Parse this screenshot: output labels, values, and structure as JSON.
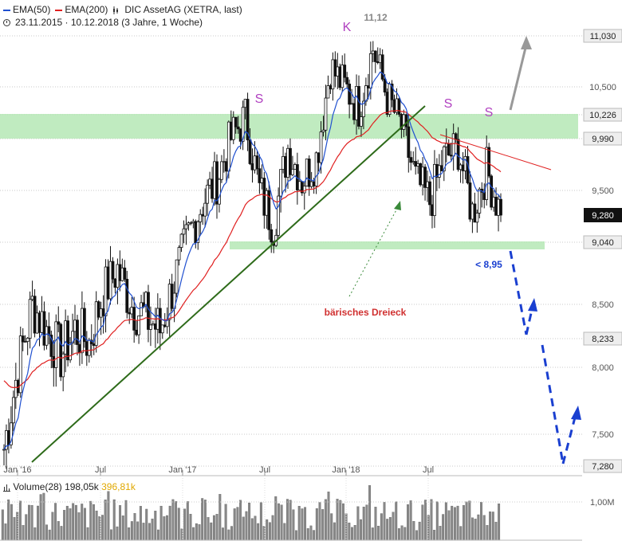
{
  "header": {
    "legend": [
      {
        "label": "EMA(50)",
        "color": "#2050d0"
      },
      {
        "label": "EMA(200)",
        "color": "#e02020"
      }
    ],
    "instrument": "DIC AssetAG (XETRA, last)",
    "period": "23.11.2015 · 10.12.2018  (3 Jahre, 1 Woche)"
  },
  "volume_header": {
    "label": "Volume(28)",
    "value1": "198,05k",
    "value2": "396,81k",
    "value2_color": "#e0a800"
  },
  "chart_data": {
    "type": "line",
    "x_tick_labels": [
      "Jan '16",
      "Jul",
      "Jan '17",
      "Jul",
      "Jan '18",
      "Jul"
    ],
    "y_tick_labels": [
      "11,030",
      "10,500",
      "10,226",
      "9,990",
      "9,500",
      "9,280",
      "9,040",
      "8,500",
      "8,233",
      "8,000",
      "7,500",
      "7,280"
    ],
    "ylim": [
      7.2,
      11.3
    ],
    "current_price": 9.28,
    "peak_label": "11,12",
    "annotations": {
      "pattern_labels": [
        "S",
        "K",
        "S",
        "S"
      ],
      "target_label": "< 8,95",
      "pattern_name": "bärisches Dreieck"
    },
    "price_series_approx": [
      {
        "date": "2016-01",
        "close": 7.4
      },
      {
        "date": "2016-02",
        "close": 8.0
      },
      {
        "date": "2016-03",
        "close": 8.5
      },
      {
        "date": "2016-04",
        "close": 8.3
      },
      {
        "date": "2016-05",
        "close": 8.1
      },
      {
        "date": "2016-06",
        "close": 8.3
      },
      {
        "date": "2016-07",
        "close": 8.2
      },
      {
        "date": "2016-08",
        "close": 8.6
      },
      {
        "date": "2016-09",
        "close": 8.8
      },
      {
        "date": "2016-10",
        "close": 8.5
      },
      {
        "date": "2016-11",
        "close": 8.4
      },
      {
        "date": "2016-12",
        "close": 8.3
      },
      {
        "date": "2017-01",
        "close": 8.7
      },
      {
        "date": "2017-02",
        "close": 9.1
      },
      {
        "date": "2017-03",
        "close": 9.4
      },
      {
        "date": "2017-04",
        "close": 9.6
      },
      {
        "date": "2017-05",
        "close": 10.0
      },
      {
        "date": "2017-06",
        "close": 10.2
      },
      {
        "date": "2017-07",
        "close": 9.5
      },
      {
        "date": "2017-08",
        "close": 9.2
      },
      {
        "date": "2017-09",
        "close": 9.9
      },
      {
        "date": "2017-10",
        "close": 9.6
      },
      {
        "date": "2017-11",
        "close": 9.8
      },
      {
        "date": "2017-12",
        "close": 10.7
      },
      {
        "date": "2018-01",
        "close": 10.5
      },
      {
        "date": "2018-02",
        "close": 10.3
      },
      {
        "date": "2018-03",
        "close": 10.9
      },
      {
        "date": "2018-04",
        "close": 10.4
      },
      {
        "date": "2018-05",
        "close": 10.1
      },
      {
        "date": "2018-06",
        "close": 9.6
      },
      {
        "date": "2018-07",
        "close": 9.4
      },
      {
        "date": "2018-08",
        "close": 9.8
      },
      {
        "date": "2018-09",
        "close": 9.9
      },
      {
        "date": "2018-10",
        "close": 9.3
      },
      {
        "date": "2018-11",
        "close": 9.7
      },
      {
        "date": "2018-12",
        "close": 9.28
      }
    ],
    "volume_axis_label": "1,00M"
  }
}
